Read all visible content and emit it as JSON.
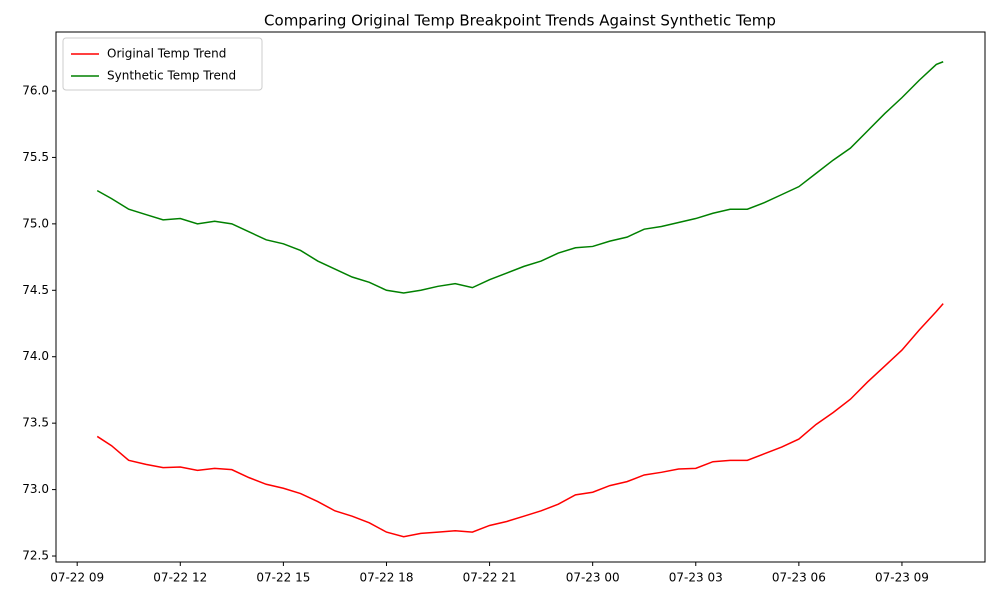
{
  "chart_data": {
    "type": "line",
    "title": "Comparing Original Temp Breakpoint Trends Against Synthetic Temp",
    "x": [
      "07-22 09:35",
      "07-22 10:00",
      "07-22 10:30",
      "07-22 11:00",
      "07-22 11:30",
      "07-22 12:00",
      "07-22 12:30",
      "07-22 13:00",
      "07-22 13:30",
      "07-22 14:00",
      "07-22 14:30",
      "07-22 15:00",
      "07-22 15:30",
      "07-22 16:00",
      "07-22 16:30",
      "07-22 17:00",
      "07-22 17:30",
      "07-22 18:00",
      "07-22 18:30",
      "07-22 19:00",
      "07-22 19:30",
      "07-22 20:00",
      "07-22 20:30",
      "07-22 21:00",
      "07-22 21:30",
      "07-22 22:00",
      "07-22 22:30",
      "07-22 23:00",
      "07-22 23:30",
      "07-23 00:00",
      "07-23 00:30",
      "07-23 01:00",
      "07-23 01:30",
      "07-23 02:00",
      "07-23 02:30",
      "07-23 03:00",
      "07-23 03:30",
      "07-23 04:00",
      "07-23 04:30",
      "07-23 05:00",
      "07-23 05:30",
      "07-23 06:00",
      "07-23 06:30",
      "07-23 07:00",
      "07-23 07:30",
      "07-23 08:00",
      "07-23 08:30",
      "07-23 09:00",
      "07-23 09:30",
      "07-23 10:00",
      "07-23 10:12"
    ],
    "series": [
      {
        "name": "Original Temp Trend",
        "color": "#ff0000",
        "values": [
          73.4,
          73.33,
          73.22,
          73.19,
          73.165,
          73.17,
          73.145,
          73.16,
          73.15,
          73.09,
          73.04,
          73.01,
          72.97,
          72.91,
          72.84,
          72.8,
          72.75,
          72.68,
          72.645,
          72.67,
          72.68,
          72.69,
          72.68,
          72.73,
          72.76,
          72.8,
          72.84,
          72.89,
          72.96,
          72.98,
          73.03,
          73.06,
          73.11,
          73.13,
          73.155,
          73.16,
          73.21,
          73.22,
          73.22,
          73.27,
          73.32,
          73.38,
          73.49,
          73.58,
          73.68,
          73.81,
          73.93,
          74.05,
          74.2,
          74.34,
          74.4
        ]
      },
      {
        "name": "Synthetic Temp Trend",
        "color": "#008000",
        "values": [
          75.25,
          75.19,
          75.11,
          75.07,
          75.03,
          75.04,
          75.0,
          75.02,
          75.0,
          74.94,
          74.88,
          74.85,
          74.8,
          74.72,
          74.66,
          74.6,
          74.56,
          74.5,
          74.48,
          74.5,
          74.53,
          74.55,
          74.52,
          74.58,
          74.63,
          74.68,
          74.72,
          74.78,
          74.82,
          74.83,
          74.87,
          74.9,
          74.96,
          74.98,
          75.01,
          75.04,
          75.08,
          75.11,
          75.11,
          75.16,
          75.22,
          75.28,
          75.38,
          75.48,
          75.57,
          75.7,
          75.83,
          75.95,
          76.08,
          76.2,
          76.22
        ]
      }
    ],
    "xlim": [
      "07-22 08:23",
      "07-23 11:25"
    ],
    "xticks": [
      "07-22 09",
      "07-22 12",
      "07-22 15",
      "07-22 18",
      "07-22 21",
      "07-23 00",
      "07-23 03",
      "07-23 06",
      "07-23 09"
    ],
    "ylim": [
      72.455,
      76.444
    ],
    "yticks": [
      72.5,
      {
        "value": 73,
        "label": "73.0"
      },
      73.5,
      {
        "value": 74,
        "label": "74.0"
      },
      74.5,
      {
        "value": 75,
        "label": "75.0"
      },
      75.5,
      {
        "value": 76,
        "label": "76.0"
      }
    ],
    "grid": false,
    "legend": "upper-left"
  }
}
